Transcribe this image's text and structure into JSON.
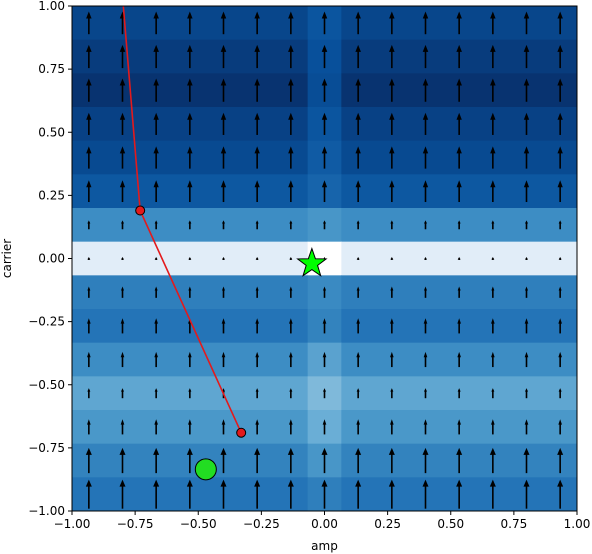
{
  "chart_data": {
    "type": "quiver-heatmap",
    "xlabel": "amp",
    "ylabel": "carrier",
    "xlim": [
      -1.0,
      1.0
    ],
    "ylim": [
      -1.0,
      1.0
    ],
    "xticks": [
      "−1.00",
      "−0.75",
      "−0.50",
      "−0.25",
      "0.00",
      "0.25",
      "0.50",
      "0.75",
      "1.00"
    ],
    "yticks": [
      "−1.00",
      "−0.75",
      "−0.50",
      "−0.25",
      "0.00",
      "0.25",
      "0.50",
      "0.75",
      "1.00"
    ],
    "xtick_values": [
      -1.0,
      -0.75,
      -0.5,
      -0.25,
      0.0,
      0.25,
      0.5,
      0.75,
      1.0
    ],
    "ytick_values": [
      -1.0,
      -0.75,
      -0.5,
      -0.25,
      0.0,
      0.25,
      0.5,
      0.75,
      1.0
    ],
    "grid": false,
    "heatmap": {
      "x_edges": [
        -1.0,
        -0.0667,
        0.0667,
        1.0
      ],
      "rows": [
        {
          "y0": 0.8667,
          "y1": 1.0,
          "colors": [
            "#08468b",
            "#0b559f",
            "#08468b"
          ]
        },
        {
          "y0": 0.7333,
          "y1": 0.8667,
          "colors": [
            "#083c7d",
            "#08509b",
            "#083c7d"
          ]
        },
        {
          "y0": 0.6,
          "y1": 0.7333,
          "colors": [
            "#083370",
            "#084d96",
            "#083370"
          ]
        },
        {
          "y0": 0.4667,
          "y1": 0.6,
          "colors": [
            "#084185",
            "#0b559f",
            "#084185"
          ]
        },
        {
          "y0": 0.3333,
          "y1": 0.4667,
          "colors": [
            "#084a91",
            "#105ba4",
            "#084a91"
          ]
        },
        {
          "y0": 0.2,
          "y1": 0.3333,
          "colors": [
            "#0d58a1",
            "#1764ab",
            "#0d58a1"
          ]
        },
        {
          "y0": 0.0667,
          "y1": 0.2,
          "colors": [
            "#3d8dc4",
            "#4896c8",
            "#3d8dc4"
          ]
        },
        {
          "y0": -0.0667,
          "y1": 0.0667,
          "colors": [
            "#e1edf8",
            "#ffffff",
            "#e1edf8"
          ]
        },
        {
          "y0": -0.2,
          "y1": -0.0667,
          "colors": [
            "#2f7fbc",
            "#3a8ac2",
            "#2f7fbc"
          ]
        },
        {
          "y0": -0.3333,
          "y1": -0.2,
          "colors": [
            "#2474b7",
            "#3383be",
            "#2474b7"
          ]
        },
        {
          "y0": -0.4667,
          "y1": -0.3333,
          "colors": [
            "#3d8dc4",
            "#5aa2cf",
            "#3d8dc4"
          ]
        },
        {
          "y0": -0.6,
          "y1": -0.4667,
          "colors": [
            "#5fa6d1",
            "#7fb9da",
            "#5fa6d1"
          ]
        },
        {
          "y0": -0.7333,
          "y1": -0.6,
          "colors": [
            "#4a98c9",
            "#6aaed6",
            "#4a98c9"
          ]
        },
        {
          "y0": -0.8667,
          "y1": -0.7333,
          "colors": [
            "#3383be",
            "#4896c8",
            "#3383be"
          ]
        },
        {
          "y0": -1.0,
          "y1": -0.8667,
          "colors": [
            "#2474b7",
            "#2f7fbc",
            "#2474b7"
          ]
        }
      ]
    },
    "quiver": {
      "x": [
        -0.9333,
        -0.8,
        -0.6667,
        -0.5333,
        -0.4,
        -0.2667,
        -0.1333,
        0.0,
        0.1333,
        0.2667,
        0.4,
        0.5333,
        0.6667,
        0.8,
        0.9333
      ],
      "rows": [
        {
          "y": 0.9333,
          "len": 0.09
        },
        {
          "y": 0.8,
          "len": 0.092
        },
        {
          "y": 0.6667,
          "len": 0.092
        },
        {
          "y": 0.5333,
          "len": 0.088
        },
        {
          "y": 0.4,
          "len": 0.088
        },
        {
          "y": 0.2667,
          "len": 0.086
        },
        {
          "y": 0.1333,
          "len": 0.035
        },
        {
          "y": 0.0,
          "len": 0.012
        },
        {
          "y": -0.1333,
          "len": 0.045
        },
        {
          "y": -0.2667,
          "len": 0.06
        },
        {
          "y": -0.4,
          "len": 0.06
        },
        {
          "y": -0.5333,
          "len": 0.04
        },
        {
          "y": -0.6667,
          "len": 0.06
        },
        {
          "y": -0.8,
          "len": 0.1
        },
        {
          "y": -0.9333,
          "len": 0.115
        }
      ],
      "arrow_color": "#000000"
    },
    "trajectory": {
      "color": "#e31a1c",
      "points": [
        [
          -0.8,
          1.04
        ],
        [
          -0.73,
          0.19
        ],
        [
          -0.33,
          -0.69
        ]
      ],
      "marker_indices": [
        1,
        2
      ]
    },
    "start_marker": {
      "x": -0.47,
      "y": -0.835,
      "shape": "circle",
      "color": "#22dd22"
    },
    "target_marker": {
      "x": -0.05,
      "y": -0.02,
      "shape": "star",
      "color": "#00ff00"
    }
  }
}
